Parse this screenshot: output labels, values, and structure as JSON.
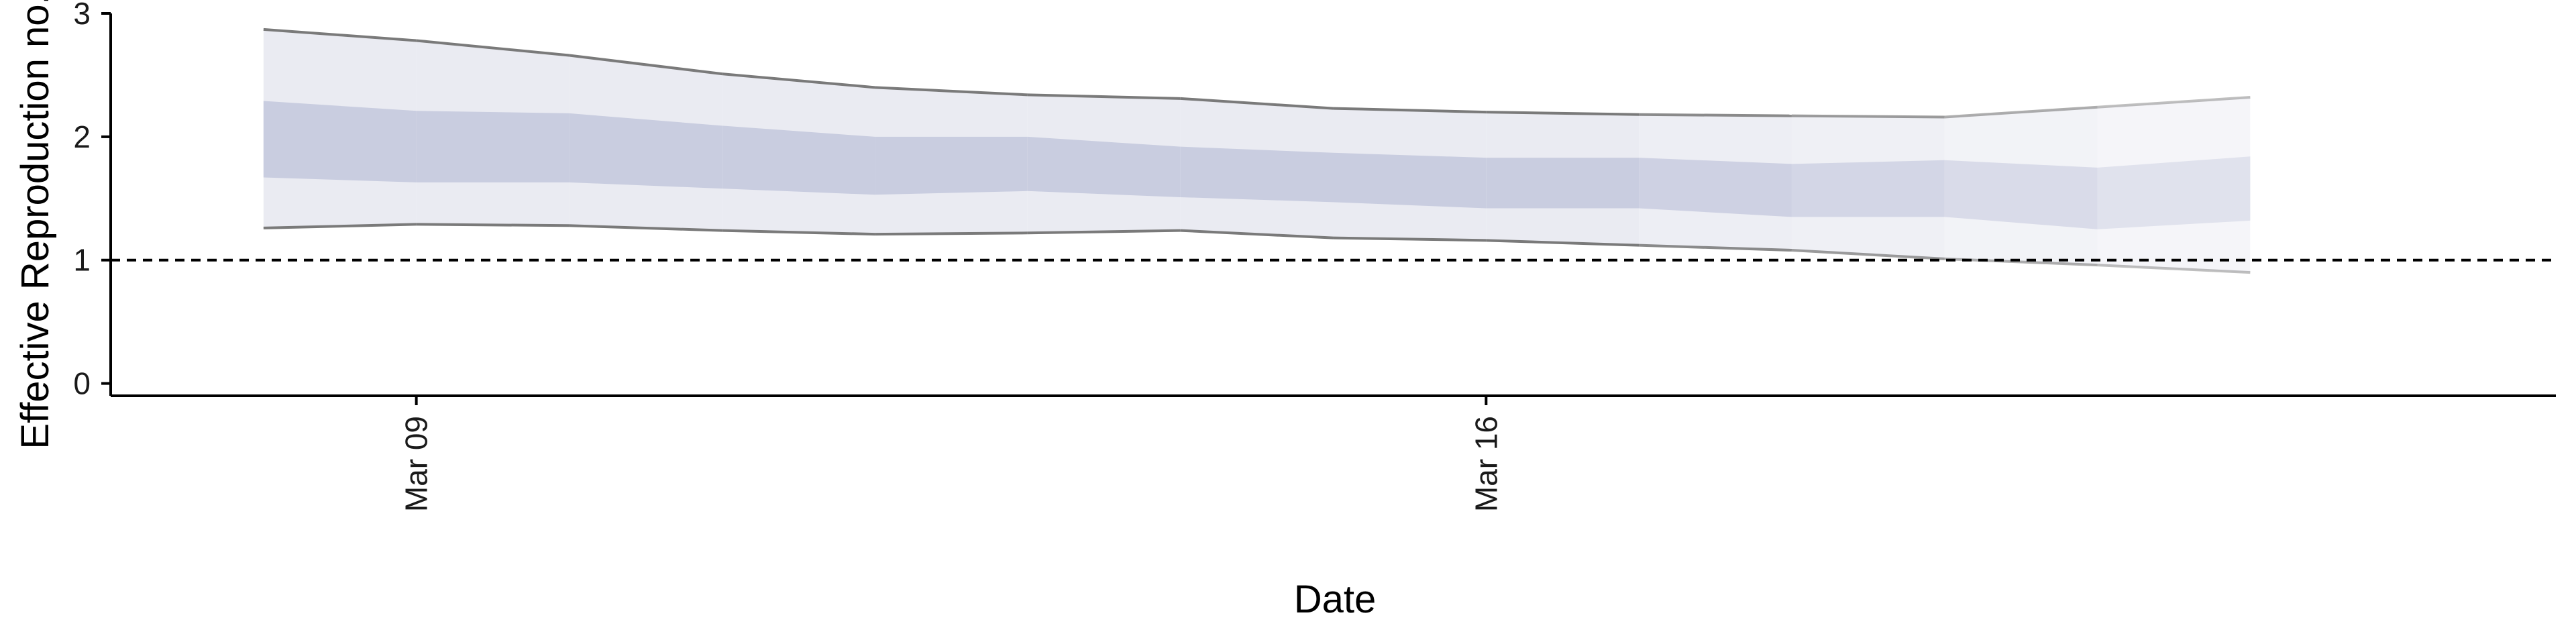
{
  "chart_data": {
    "type": "area",
    "title": "",
    "xlabel": "Date",
    "ylabel": "Effective Reproduction no.",
    "ylim": [
      -0.1,
      3.0
    ],
    "y_ticks": [
      "0",
      "1",
      "2",
      "3"
    ],
    "x_range": [
      "2020-03-07",
      "2020-03-23"
    ],
    "x_ticks": [
      {
        "date": "2020-03-09",
        "label": "Mar 09"
      },
      {
        "date": "2020-03-16",
        "label": "Mar 16"
      }
    ],
    "x": [
      "2020-03-08",
      "2020-03-09",
      "2020-03-10",
      "2020-03-11",
      "2020-03-12",
      "2020-03-13",
      "2020-03-14",
      "2020-03-15",
      "2020-03-16",
      "2020-03-17",
      "2020-03-18",
      "2020-03-19",
      "2020-03-20",
      "2020-03-21"
    ],
    "series": [
      {
        "band": "90%",
        "lower": [
          1.26,
          1.29,
          1.28,
          1.24,
          1.21,
          1.22,
          1.24,
          1.18,
          1.16,
          1.12,
          1.08,
          1.01,
          0.96,
          0.9
        ],
        "upper": [
          2.87,
          2.78,
          2.66,
          2.51,
          2.4,
          2.34,
          2.31,
          2.23,
          2.2,
          2.18,
          2.17,
          2.16,
          2.24,
          2.32
        ]
      },
      {
        "band": "50%",
        "lower": [
          1.67,
          1.63,
          1.63,
          1.58,
          1.53,
          1.56,
          1.51,
          1.47,
          1.42,
          1.42,
          1.35,
          1.35,
          1.25,
          1.32
        ],
        "upper": [
          2.29,
          2.21,
          2.19,
          2.09,
          2.0,
          2.0,
          1.92,
          1.87,
          1.83,
          1.83,
          1.78,
          1.81,
          1.75,
          1.84
        ]
      }
    ],
    "reference_line": {
      "y": 1,
      "style": "dashed"
    },
    "grid": false,
    "legend": "none",
    "colors": {
      "band_outer": "#eaebf2",
      "band_inner": "#c9cde0",
      "bound_line": "#7a7a7a",
      "axis": "#000000"
    }
  }
}
